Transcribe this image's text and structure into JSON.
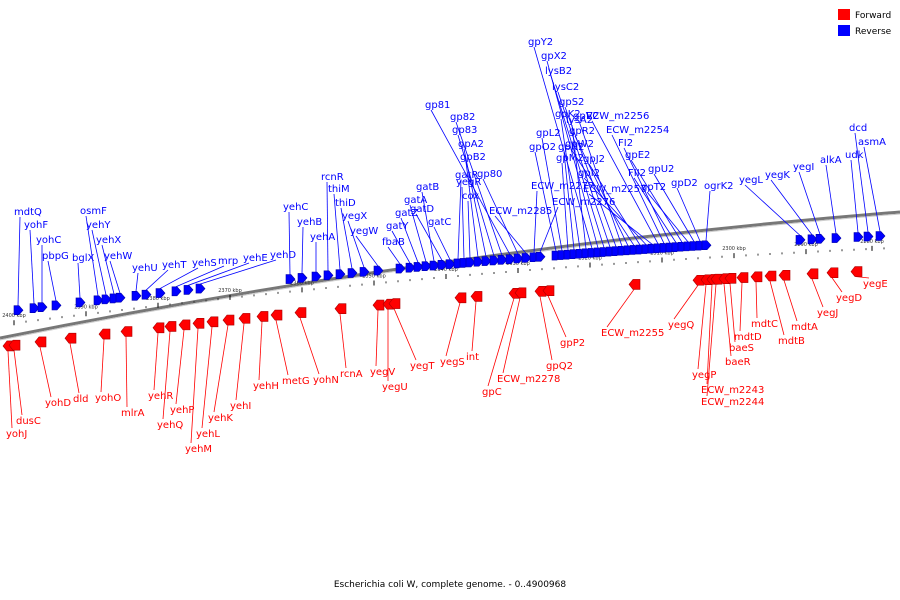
{
  "caption": "Escherichia coli W, complete genome. - 0..4900968",
  "legend": [
    {
      "label": "Forward",
      "color": "#ff0000"
    },
    {
      "label": "Reverse",
      "color": "#0000ff"
    }
  ],
  "colors": {
    "forward": "#ff0000",
    "forward_dark": "#aa0000",
    "reverse": "#0000ff",
    "reverse_dark": "#0000aa",
    "axis": "#666666"
  },
  "ticks": [
    "2400 kbp",
    "2390 kbp",
    "2380 kbp",
    "2370 kbp",
    "2360 kbp",
    "2350 kbp",
    "2340 kbp",
    "2330 kbp",
    "2320 kbp",
    "2310 kbp",
    "2300 kbp",
    "2290 kbp",
    "2280 kbp"
  ],
  "reverse_genes": [
    "mdtQ",
    "yohF",
    "yohC",
    "pbpG",
    "bglX",
    "osmF",
    "yehY",
    "yehX",
    "yehW",
    "yehU",
    "yehT",
    "yehS",
    "mrp",
    "yehE",
    "yehD",
    "yehC",
    "yehB",
    "yehA",
    "rcnR",
    "thiM",
    "thiD",
    "yegX",
    "yegW",
    "fbaB",
    "gatY",
    "gatZ",
    "gatA",
    "gatB",
    "gatD",
    "gatC",
    "gatR",
    "yegR",
    "cox",
    "gpB2",
    "gpA2",
    "gp83",
    "gp82",
    "gp81",
    "gp80",
    "ECW_m2285",
    "ECW_m2277",
    "ECW_m2276",
    "gpO2",
    "gpL2",
    "gpM2",
    "gpN2",
    "gpK2",
    "lysA2",
    "gpY2",
    "gpX2",
    "lysB2",
    "lysC2",
    "gpS2",
    "gpV2",
    "gpR2",
    "gpW2",
    "gpJ2",
    "gpI2",
    "ECW_m2257",
    "ECW_m2256",
    "ECW_m2254",
    "FI2",
    "FII2",
    "gpE2",
    "gpT2",
    "gpU2",
    "gpD2",
    "ogrK2",
    "yegL",
    "yegK",
    "yegI",
    "alkA",
    "udk",
    "dcd",
    "asmA"
  ],
  "forward_genes": [
    "yohJ",
    "dusC",
    "yohD",
    "dld",
    "yohO",
    "mlrA",
    "yehR",
    "yehQ",
    "yehP",
    "yehM",
    "yehL",
    "yehK",
    "yehI",
    "yehH",
    "metG",
    "yohN",
    "rcnA",
    "yegV",
    "yegU",
    "yegT",
    "yegS",
    "int",
    "gpC",
    "ECW_m2278",
    "gpQ2",
    "gpP2",
    "ECW_m2255",
    "yegQ",
    "yegP",
    "ECW_m2243",
    "ECW_m2244",
    "baeR",
    "baeS",
    "mdtD",
    "mdtC",
    "mdtB",
    "mdtA",
    "yegJ",
    "yegD",
    "yegE"
  ]
}
